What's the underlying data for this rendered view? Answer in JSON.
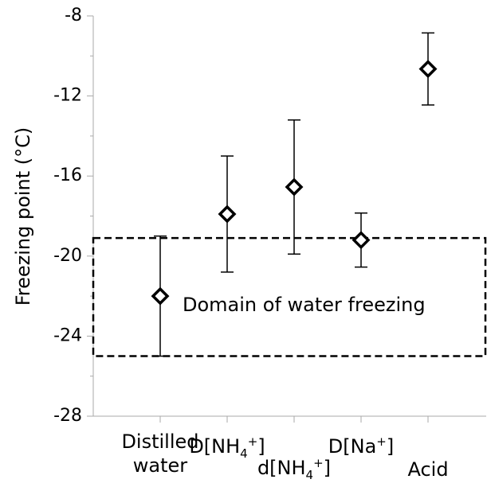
{
  "chart_data": {
    "type": "scatter",
    "y_label": "Freezing point (°C)",
    "categories": [
      "Distilled water",
      "D[NH4+]",
      "d[NH4+]",
      "D[Na+]",
      "Acid"
    ],
    "values": [
      -22.0,
      -17.9,
      -16.55,
      -19.2,
      -10.65
    ],
    "errors": [
      3.0,
      2.9,
      3.35,
      1.35,
      1.8
    ],
    "color": "#000000",
    "ylim": [
      -28,
      -8
    ],
    "yticks": [
      -28,
      -24,
      -20,
      -16,
      -12,
      -8
    ],
    "minor_yticks": [
      -26,
      -22,
      -18,
      -14,
      -10
    ],
    "region": {
      "ylim": [
        -25,
        -19.1
      ],
      "label": "Domain of water freezing"
    }
  }
}
